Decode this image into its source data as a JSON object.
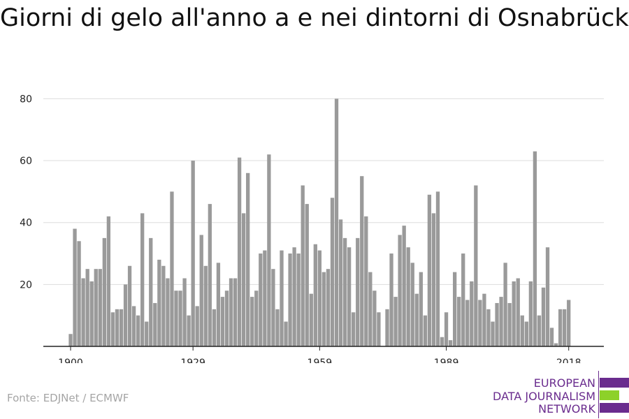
{
  "title": "Giorni di gelo all'anno a e nei dintorni di Osnabrück",
  "source": "Fonte: EDJNet / ECMWF",
  "logo": {
    "lines": [
      "EUROPEAN",
      "DATA JOURNALISM",
      "NETWORK"
    ],
    "colors": {
      "purple": "#6a2c8e",
      "green": "#8dd129"
    }
  },
  "colors": {
    "bar": "#9a9a9a",
    "grid": "#dddddd",
    "axis": "#222222"
  },
  "chart_data": {
    "type": "bar",
    "title": "Giorni di gelo all'anno a e nei dintorni di Osnabrück",
    "xlabel": "",
    "ylabel": "",
    "x": [
      1900,
      1901,
      1902,
      1903,
      1904,
      1905,
      1906,
      1907,
      1908,
      1909,
      1910,
      1911,
      1912,
      1913,
      1914,
      1915,
      1916,
      1917,
      1918,
      1919,
      1920,
      1921,
      1922,
      1923,
      1924,
      1925,
      1926,
      1927,
      1928,
      1929,
      1930,
      1931,
      1932,
      1933,
      1934,
      1935,
      1936,
      1937,
      1938,
      1939,
      1940,
      1941,
      1942,
      1943,
      1944,
      1945,
      1946,
      1947,
      1948,
      1949,
      1950,
      1951,
      1952,
      1953,
      1954,
      1955,
      1956,
      1957,
      1958,
      1959,
      1960,
      1961,
      1962,
      1963,
      1964,
      1965,
      1966,
      1967,
      1968,
      1969,
      1970,
      1971,
      1972,
      1973,
      1974,
      1975,
      1976,
      1977,
      1978,
      1979,
      1980,
      1981,
      1982,
      1983,
      1984,
      1985,
      1986,
      1987,
      1988,
      1989,
      1990,
      1991,
      1992,
      1993,
      1994,
      1995,
      1996,
      1997,
      1998,
      1999,
      2000,
      2001,
      2002,
      2003,
      2004,
      2005,
      2006,
      2007,
      2008,
      2009,
      2010,
      2011,
      2012,
      2013,
      2014,
      2015,
      2016,
      2017,
      2018
    ],
    "values": [
      4,
      38,
      34,
      22,
      25,
      21,
      25,
      25,
      35,
      42,
      11,
      12,
      12,
      20,
      26,
      13,
      10,
      43,
      8,
      35,
      14,
      28,
      26,
      22,
      50,
      18,
      18,
      22,
      10,
      60,
      13,
      36,
      26,
      46,
      12,
      27,
      16,
      18,
      22,
      22,
      61,
      43,
      56,
      16,
      18,
      30,
      31,
      62,
      25,
      12,
      31,
      8,
      30,
      32,
      30,
      52,
      46,
      17,
      33,
      31,
      24,
      25,
      48,
      80,
      41,
      35,
      32,
      11,
      35,
      55,
      42,
      24,
      18,
      11,
      0,
      12,
      30,
      16,
      36,
      39,
      32,
      27,
      17,
      24,
      10,
      49,
      43,
      50,
      3,
      11,
      2,
      24,
      16,
      30,
      15,
      21,
      52,
      15,
      17,
      12,
      8,
      14,
      16,
      27,
      14,
      21,
      22,
      10,
      8,
      21,
      63,
      10,
      19,
      32,
      6,
      1,
      12,
      12,
      15
    ],
    "xticks": [
      1900,
      1929,
      1959,
      1989,
      2018
    ],
    "yticks": [
      20,
      40,
      60,
      80
    ],
    "ylim": [
      0,
      80
    ],
    "grid": true
  }
}
